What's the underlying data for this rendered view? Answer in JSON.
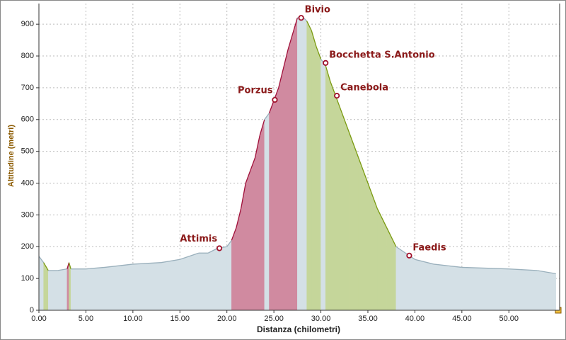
{
  "chart_data": {
    "type": "area",
    "x_label": "Distanza (chilometri)",
    "y_label": "Altitudine (metri)",
    "xlim": [
      0,
      55.4
    ],
    "ylim": [
      0,
      965
    ],
    "xticks": [
      {
        "value": 0,
        "label": "0.00"
      },
      {
        "value": 5,
        "label": "5.00"
      },
      {
        "value": 10,
        "label": "10.00"
      },
      {
        "value": 15,
        "label": "15.00"
      },
      {
        "value": 20,
        "label": "20.00"
      },
      {
        "value": 25,
        "label": "25.00"
      },
      {
        "value": 30,
        "label": "30.00"
      },
      {
        "value": 35,
        "label": "35.00"
      },
      {
        "value": 40,
        "label": "40.00"
      },
      {
        "value": 45,
        "label": "45.00"
      },
      {
        "value": 50,
        "label": "50.00"
      }
    ],
    "yticks": [
      0,
      100,
      200,
      300,
      400,
      500,
      600,
      700,
      800,
      900
    ],
    "grid": true,
    "x": [
      0,
      0.5,
      1,
      2,
      3,
      3.2,
      3.4,
      5,
      7,
      10,
      13,
      15,
      16,
      17,
      18,
      19,
      20,
      20.5,
      21,
      21.5,
      22,
      22.5,
      23,
      23.5,
      24,
      24.5,
      25,
      25.5,
      26,
      26.5,
      27,
      27.5,
      28,
      28.5,
      29,
      29.5,
      30,
      30.5,
      31,
      31.5,
      32,
      33,
      34,
      35,
      36,
      37,
      38,
      39,
      40,
      42,
      45,
      50,
      53,
      55
    ],
    "values": [
      170,
      150,
      125,
      125,
      130,
      150,
      130,
      130,
      135,
      145,
      150,
      160,
      170,
      180,
      180,
      195,
      200,
      220,
      260,
      320,
      400,
      440,
      480,
      550,
      600,
      620,
      660,
      700,
      760,
      820,
      870,
      920,
      925,
      910,
      880,
      830,
      790,
      770,
      720,
      680,
      640,
      560,
      480,
      400,
      320,
      260,
      200,
      180,
      160,
      145,
      135,
      130,
      125,
      115
    ],
    "waypoints": [
      {
        "name": "Attimis",
        "x": 19.2,
        "y": 195
      },
      {
        "name": "Porzus",
        "x": 25.1,
        "y": 662
      },
      {
        "name": "Bivio",
        "x": 27.9,
        "y": 920
      },
      {
        "name": "Bocchetta S.Antonio",
        "x": 30.5,
        "y": 778
      },
      {
        "name": "Canebola",
        "x": 31.7,
        "y": 675
      },
      {
        "name": "Faedis",
        "x": 39.4,
        "y": 172
      }
    ]
  }
}
